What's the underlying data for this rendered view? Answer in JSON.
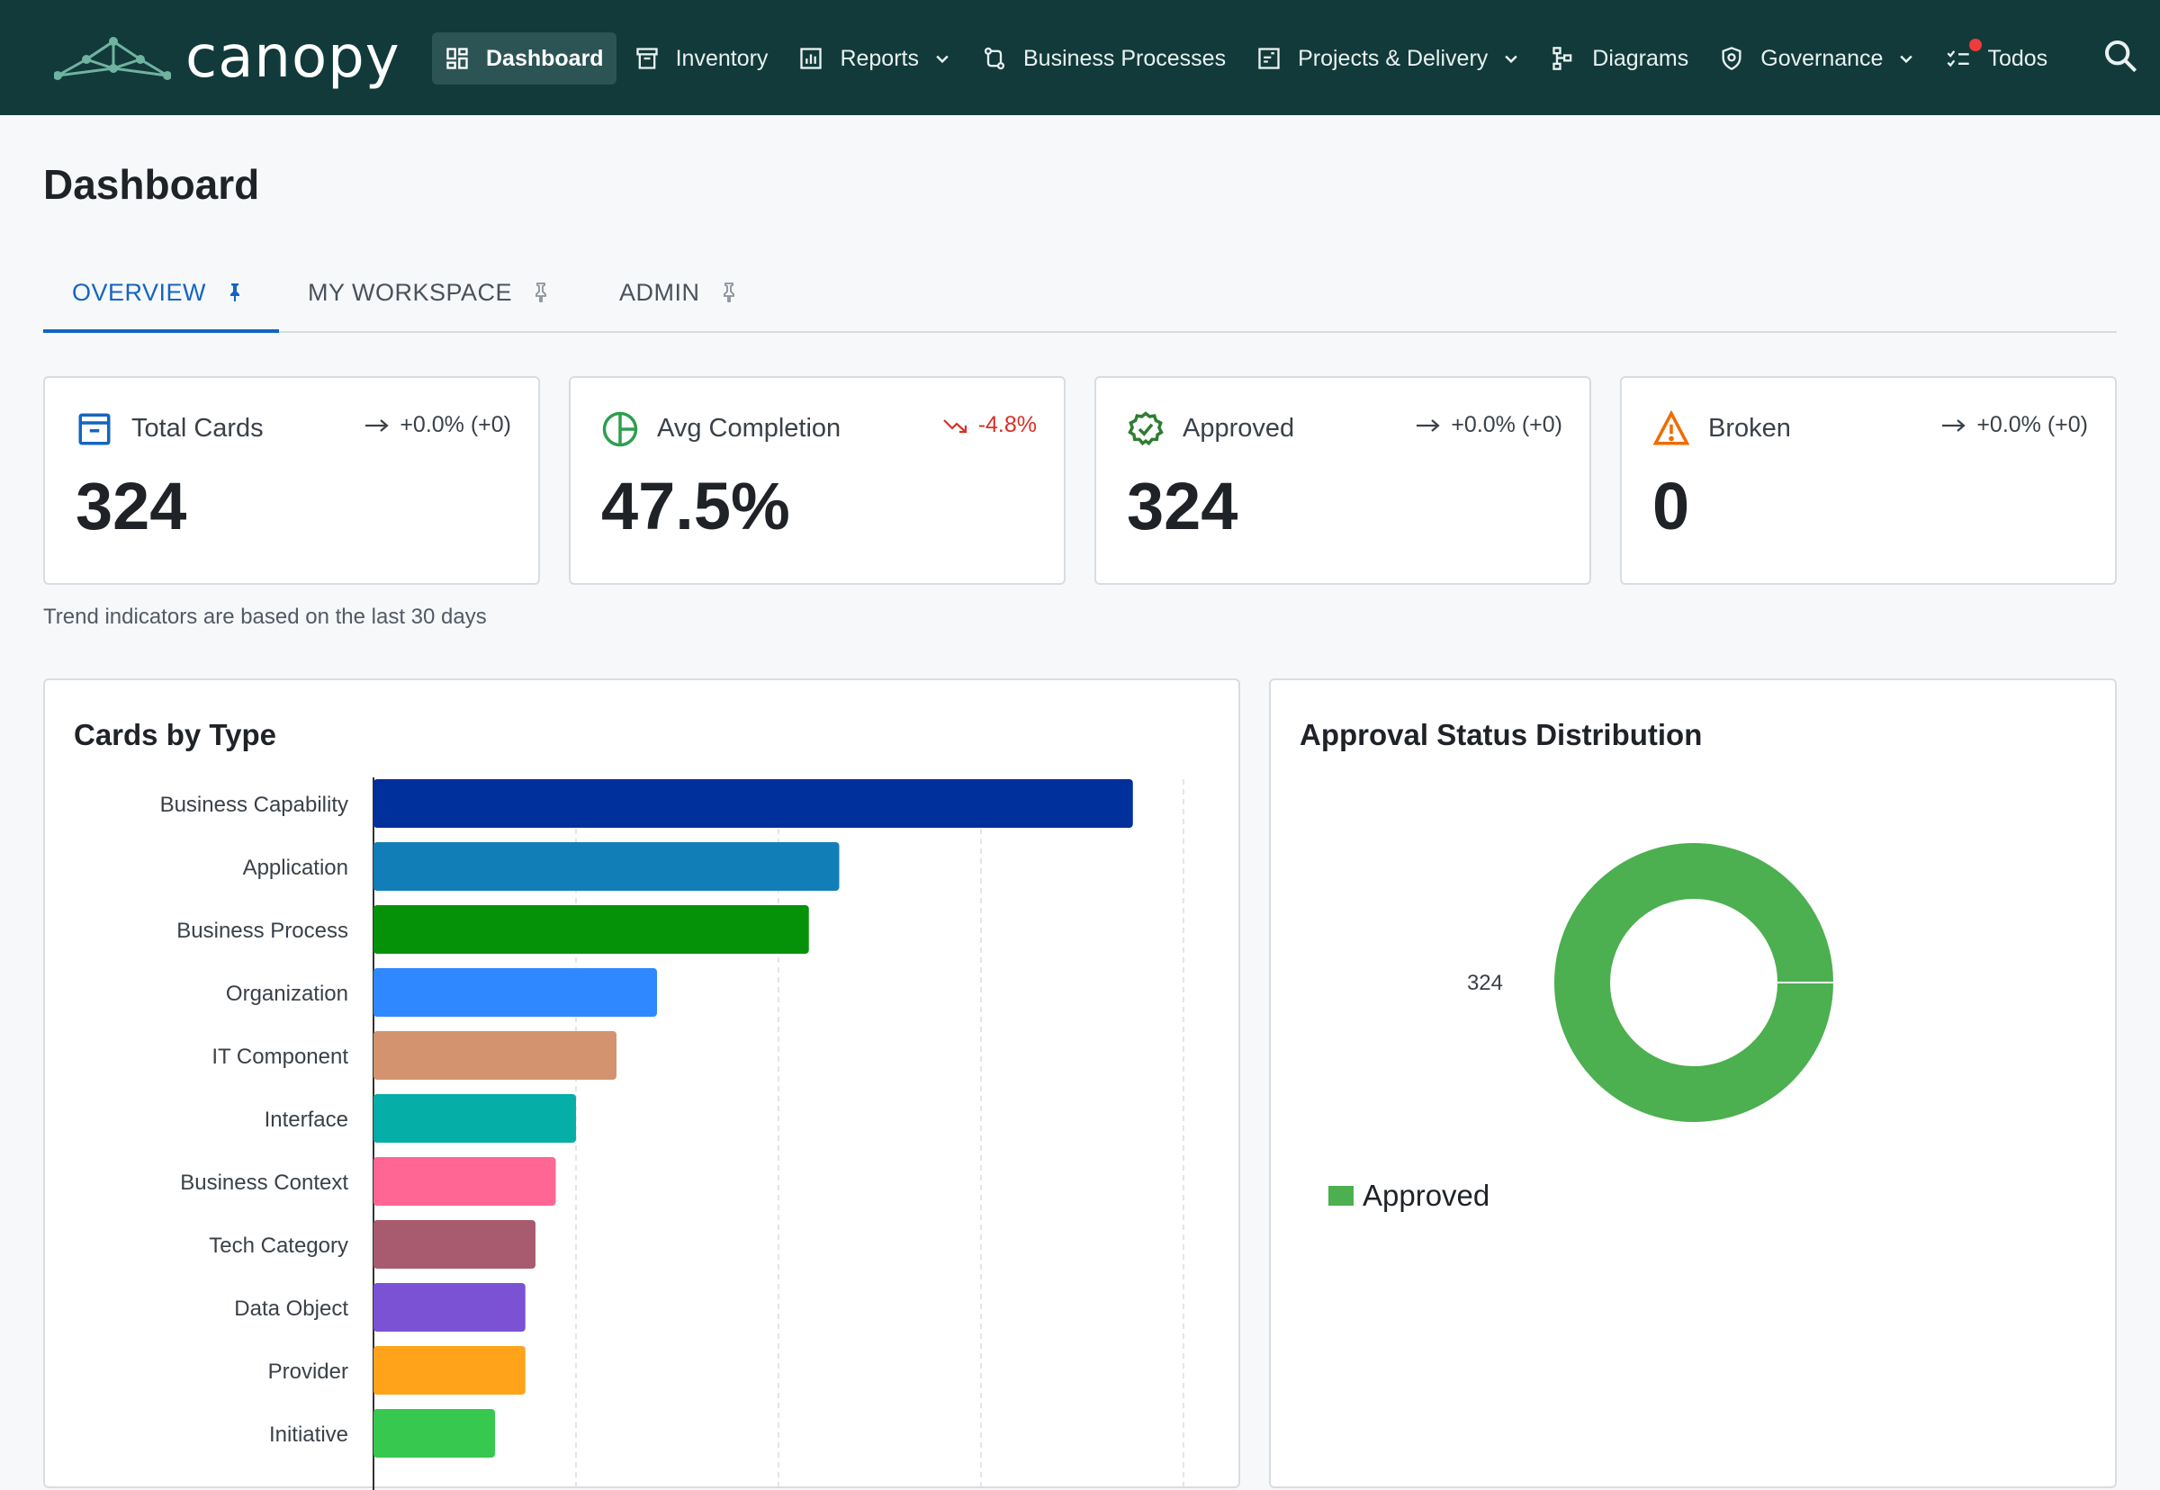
{
  "app": {
    "name": "canopy"
  },
  "nav": {
    "items": [
      {
        "label": "Dashboard",
        "icon": "dashboard-icon",
        "active": true
      },
      {
        "label": "Inventory",
        "icon": "inventory-icon"
      },
      {
        "label": "Reports",
        "icon": "reports-icon",
        "has_dropdown": true
      },
      {
        "label": "Business Processes",
        "icon": "process-icon"
      },
      {
        "label": "Projects & Delivery",
        "icon": "projects-icon",
        "has_dropdown": true
      },
      {
        "label": "Diagrams",
        "icon": "diagram-icon"
      },
      {
        "label": "Governance",
        "icon": "governance-icon",
        "has_dropdown": true
      },
      {
        "label": "Todos",
        "icon": "todos-icon",
        "has_notification": true
      }
    ],
    "search_icon": "search-icon"
  },
  "page": {
    "title": "Dashboard"
  },
  "tabs": [
    {
      "label": "OVERVIEW",
      "active": true,
      "pinned": true
    },
    {
      "label": "MY WORKSPACE",
      "pinned": false
    },
    {
      "label": "ADMIN",
      "pinned": false
    }
  ],
  "stats": [
    {
      "label": "Total Cards",
      "value": "324",
      "trend": "+0.0% (+0)",
      "trend_direction": "flat",
      "icon": "archive-icon",
      "icon_color": "#1565c0"
    },
    {
      "label": "Avg Completion",
      "value": "47.5%",
      "trend": "-4.8%",
      "trend_direction": "down",
      "icon": "pie-progress-icon",
      "icon_color": "#2e9e4f"
    },
    {
      "label": "Approved",
      "value": "324",
      "trend": "+0.0% (+0)",
      "trend_direction": "flat",
      "icon": "verified-badge-icon",
      "icon_color": "#2e7d32"
    },
    {
      "label": "Broken",
      "value": "0",
      "trend": "+0.0% (+0)",
      "trend_direction": "flat",
      "icon": "warning-icon",
      "icon_color": "#ef6c00"
    }
  ],
  "trend_note": "Trend indicators are based on the last 30 days",
  "panels": {
    "cards_by_type": {
      "title": "Cards by Type"
    },
    "approval_status": {
      "title": "Approval Status Distribution"
    }
  },
  "chart_data": [
    {
      "type": "bar",
      "orientation": "horizontal",
      "title": "Cards by Type",
      "categories": [
        "Business Capability",
        "Application",
        "Business Process",
        "Organization",
        "IT Component",
        "Interface",
        "Business Context",
        "Tech Category",
        "Data Object",
        "Provider",
        "Initiative"
      ],
      "values": [
        75,
        46,
        43,
        28,
        24,
        20,
        18,
        16,
        15,
        15,
        12
      ],
      "colors": [
        "#00309c",
        "#117eb8",
        "#069208",
        "#2f88ff",
        "#d4936f",
        "#05aea7",
        "#ff6694",
        "#a85b6e",
        "#7b52d4",
        "#ffa31a",
        "#37c84f"
      ],
      "xlim": [
        0,
        80
      ],
      "grid": true
    },
    {
      "type": "pie",
      "variant": "donut",
      "title": "Approval Status Distribution",
      "slices": [
        {
          "label": "Approved",
          "value": 324,
          "color": "#4caf50"
        }
      ],
      "data_label": "324",
      "legend": "bottom-left"
    }
  ]
}
